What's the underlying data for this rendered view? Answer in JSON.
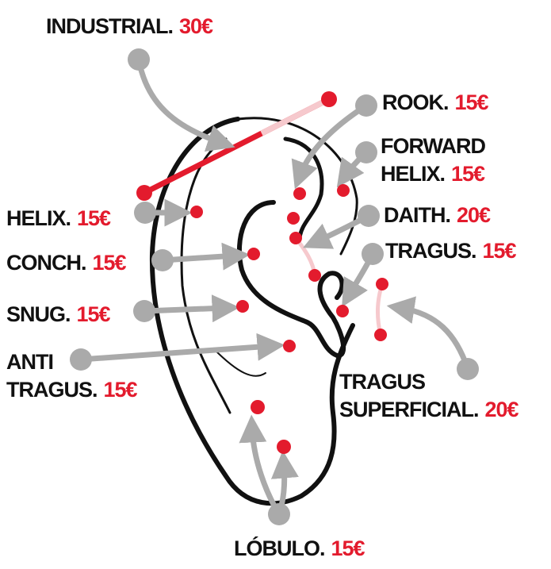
{
  "piercings": [
    {
      "lines": [
        "INDUSTRIAL."
      ],
      "price": "30€"
    },
    {
      "lines": [
        "ROOK."
      ],
      "price": "15€"
    },
    {
      "lines": [
        "FORWARD",
        "HELIX."
      ],
      "price": "15€"
    },
    {
      "lines": [
        "DAITH."
      ],
      "price": "20€"
    },
    {
      "lines": [
        "TRAGUS."
      ],
      "price": "15€"
    },
    {
      "lines": [
        "HELIX."
      ],
      "price": "15€"
    },
    {
      "lines": [
        "CONCH."
      ],
      "price": "15€"
    },
    {
      "lines": [
        "SNUG."
      ],
      "price": "15€"
    },
    {
      "lines": [
        "ANTI",
        "TRAGUS."
      ],
      "price": "15€"
    },
    {
      "lines": [
        "TRAGUS",
        "SUPERFICIAL."
      ],
      "price": "20€"
    },
    {
      "lines": [
        "LÓBULO."
      ],
      "price": "15€"
    }
  ]
}
